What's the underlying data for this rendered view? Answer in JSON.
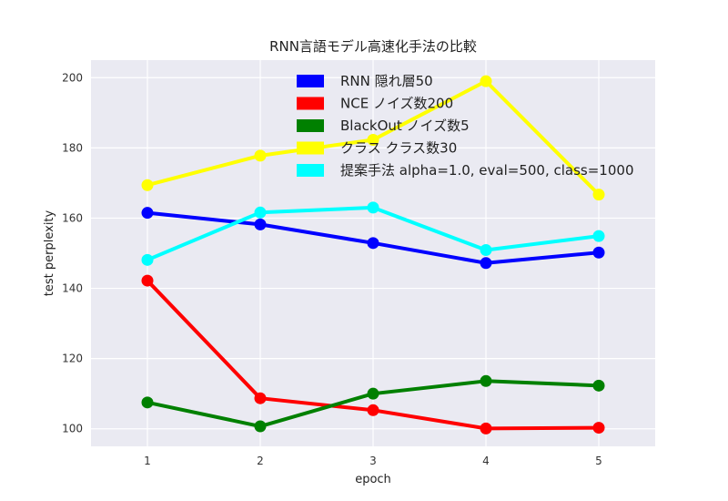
{
  "chart_data": {
    "type": "line",
    "title": "RNN言語モデル高速化手法の比較",
    "xlabel": "epoch",
    "ylabel": "test perplexity",
    "x": [
      1,
      2,
      3,
      4,
      5
    ],
    "xlim": [
      0.5,
      5.5
    ],
    "ylim": [
      95,
      205
    ],
    "yticks": [
      100,
      120,
      140,
      160,
      180,
      200
    ],
    "grid": true,
    "legend_position": "top-center",
    "series": [
      {
        "name": "RNN 隠れ層50",
        "color": "#0000ff",
        "values": [
          161.5,
          158.2,
          152.9,
          147.2,
          150.2
        ]
      },
      {
        "name": "NCE ノイズ数200",
        "color": "#ff0000",
        "values": [
          142.2,
          108.7,
          105.3,
          100.1,
          100.3
        ]
      },
      {
        "name": "BlackOut ノイズ数5",
        "color": "#008000",
        "values": [
          107.5,
          100.7,
          110.0,
          113.6,
          112.3
        ]
      },
      {
        "name": "クラス クラス数30",
        "color": "#ffff00",
        "values": [
          169.4,
          177.8,
          182.3,
          199.0,
          166.7
        ]
      },
      {
        "name": "提案手法 alpha=1.0, eval=500, class=1000",
        "color": "#00ffff",
        "values": [
          148.1,
          161.6,
          163.0,
          150.9,
          154.9
        ]
      }
    ]
  }
}
